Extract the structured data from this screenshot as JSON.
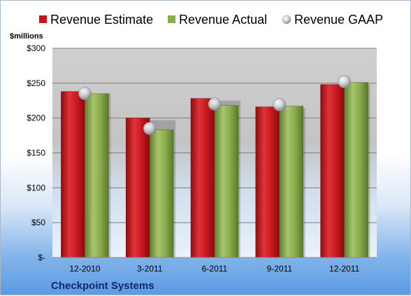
{
  "company": "Checkpoint Systems",
  "chart_data": {
    "type": "bar",
    "unit_label": "$millions",
    "categories": [
      "12-2010",
      "3-2011",
      "6-2011",
      "9-2011",
      "12-2011"
    ],
    "series": [
      {
        "name": "Revenue Estimate",
        "kind": "bar",
        "color": "#c0151b",
        "values": [
          238,
          200,
          228,
          216,
          248
        ]
      },
      {
        "name": "Revenue Actual",
        "kind": "bar",
        "color": "#8aac4e",
        "values": [
          235,
          183,
          218,
          217,
          251
        ]
      },
      {
        "name": "Revenue GAAP",
        "kind": "marker",
        "color": "#c8ccd2",
        "values": [
          235,
          185,
          220,
          219,
          252
        ]
      }
    ],
    "y_ticks": [
      {
        "value": 0,
        "label": "$-"
      },
      {
        "value": 50,
        "label": "$50"
      },
      {
        "value": 100,
        "label": "$100"
      },
      {
        "value": 150,
        "label": "$150"
      },
      {
        "value": 200,
        "label": "$200"
      },
      {
        "value": 250,
        "label": "$250"
      },
      {
        "value": 300,
        "label": "$300"
      }
    ],
    "ylim": [
      0,
      300
    ],
    "grid": true,
    "legend_position": "top"
  }
}
